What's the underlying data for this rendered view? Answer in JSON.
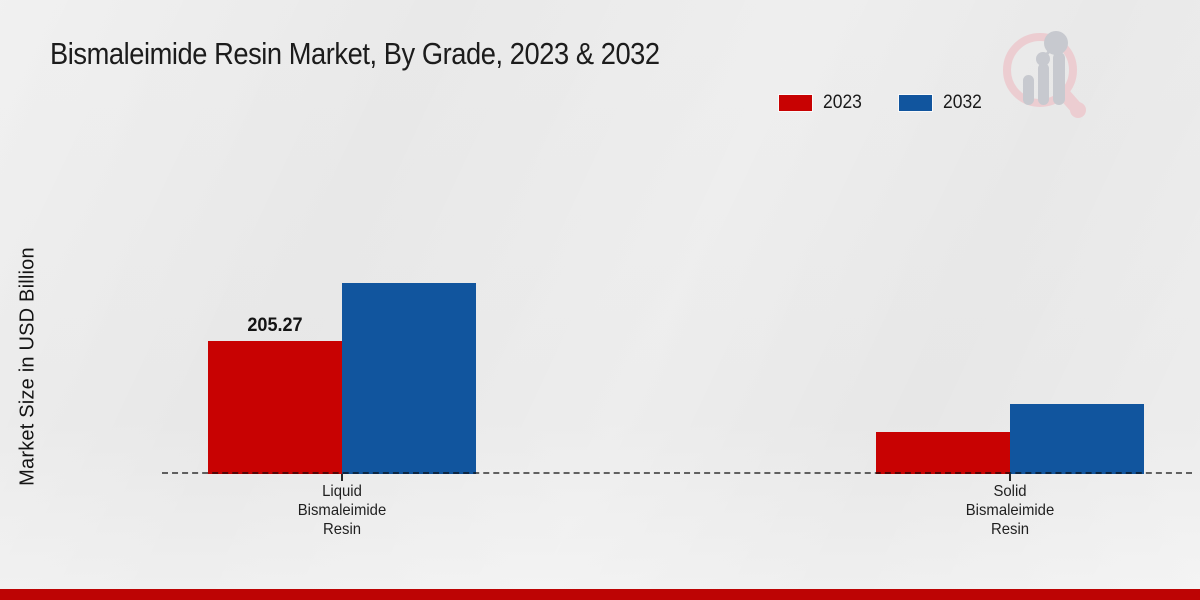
{
  "chart_data": {
    "type": "bar",
    "title": "Bismaleimide Resin Market, By Grade, 2023 & 2032",
    "ylabel": "Market Size in USD Billion",
    "categories": [
      "Liquid Bismaleimide Resin",
      "Solid Bismaleimide Resin"
    ],
    "series": [
      {
        "name": "2023",
        "color": "#c80202",
        "values": [
          205.27,
          65
        ]
      },
      {
        "name": "2032",
        "color": "#11559e",
        "values": [
          295,
          108
        ]
      }
    ],
    "data_labels": [
      {
        "series_index": 0,
        "category_index": 0,
        "text": "205.27"
      }
    ],
    "ylim": [
      0,
      320
    ],
    "grid": false,
    "legend_position": "top-right",
    "baseline_style": "dashed",
    "baseline_color": "#1a1a1a"
  },
  "footer": {
    "bar_color": "#bd0404"
  },
  "watermark": {
    "icon": "magnifier-bar-chart-logo",
    "ring_color": "#eccdd1",
    "bars_color": "#c7c9cf"
  }
}
